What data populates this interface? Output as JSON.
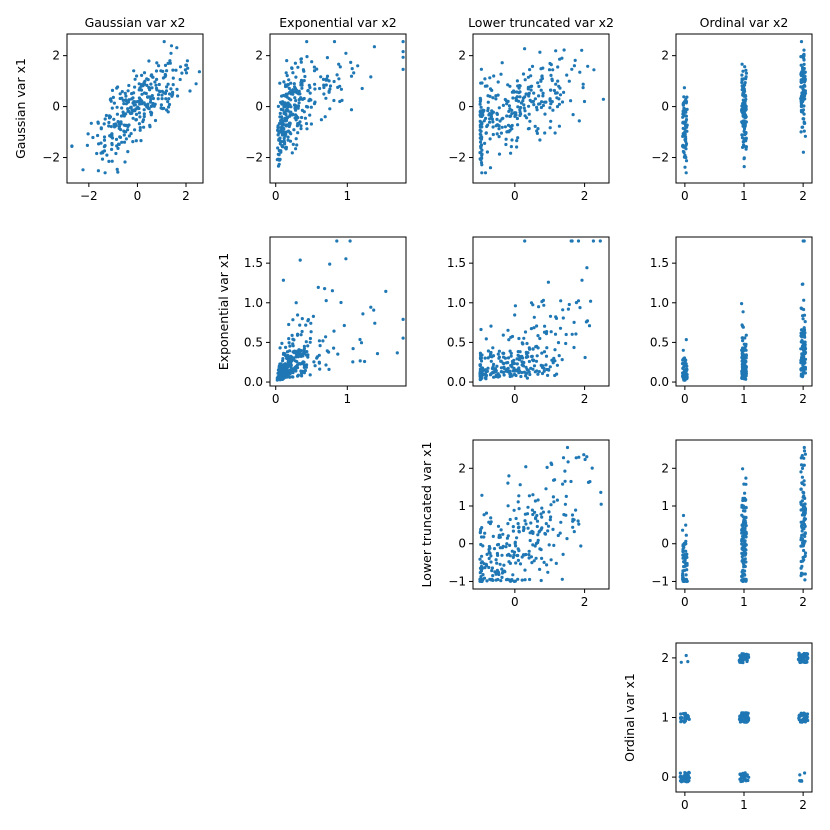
{
  "figure": {
    "point_color": "#1f77b4",
    "column_titles": [
      "Gaussian var x2",
      "Exponential var x2",
      "Lower truncated var x2",
      "Ordinal var x2"
    ],
    "row_labels": [
      "Gaussian var x1",
      "Exponential var x1",
      "Lower truncated var x1",
      "Ordinal var x1"
    ]
  },
  "chart_data": [
    {
      "type": "scatter",
      "name": "gaussian-vs-gaussian",
      "row": 0,
      "col": 0,
      "title": "Gaussian var x2",
      "ylabel": "Gaussian var x1",
      "xlim": [
        -2.9,
        2.7
      ],
      "ylim": [
        -3.0,
        2.85
      ],
      "xticks": [
        -2,
        0,
        2
      ],
      "xticklabels": [
        "−2",
        "0",
        "2"
      ],
      "yticks": [
        -2,
        0,
        2
      ],
      "yticklabels": [
        "−2",
        "0",
        "2"
      ],
      "n": 300,
      "kind": "gauss_gauss"
    },
    {
      "type": "scatter",
      "name": "gaussian-vs-exponential",
      "row": 0,
      "col": 1,
      "title": "Exponential var x2",
      "ylabel": "",
      "xlim": [
        -0.08,
        1.82
      ],
      "ylim": [
        -3.0,
        2.85
      ],
      "xticks": [
        0,
        1
      ],
      "xticklabels": [
        "0",
        "1"
      ],
      "yticks": [
        -2,
        0,
        2
      ],
      "yticklabels": [
        "−2",
        "0",
        "2"
      ],
      "n": 300,
      "kind": "gauss_exp"
    },
    {
      "type": "scatter",
      "name": "gaussian-vs-truncated",
      "row": 0,
      "col": 2,
      "title": "Lower truncated var x2",
      "ylabel": "",
      "xlim": [
        -1.2,
        2.7
      ],
      "ylim": [
        -3.0,
        2.85
      ],
      "xticks": [
        0,
        2
      ],
      "xticklabels": [
        "0",
        "2"
      ],
      "yticks": [
        -2,
        0,
        2
      ],
      "yticklabels": [
        "−2",
        "0",
        "2"
      ],
      "n": 300,
      "kind": "gauss_trunc"
    },
    {
      "type": "scatter",
      "name": "gaussian-vs-ordinal",
      "row": 0,
      "col": 3,
      "title": "Ordinal var x2",
      "ylabel": "",
      "xlim": [
        -0.15,
        2.15
      ],
      "ylim": [
        -3.0,
        2.85
      ],
      "xticks": [
        0,
        1,
        2
      ],
      "xticklabels": [
        "0",
        "1",
        "2"
      ],
      "yticks": [
        -2,
        0,
        2
      ],
      "yticklabels": [
        "−2",
        "0",
        "2"
      ],
      "n": 300,
      "kind": "gauss_ord"
    },
    {
      "type": "scatter",
      "name": "exponential-vs-exponential",
      "row": 1,
      "col": 1,
      "title": "",
      "ylabel": "Exponential var x1",
      "xlim": [
        -0.08,
        1.82
      ],
      "ylim": [
        -0.05,
        1.83
      ],
      "xticks": [
        0,
        1
      ],
      "xticklabels": [
        "0",
        "1"
      ],
      "yticks": [
        0.0,
        0.5,
        1.0,
        1.5
      ],
      "yticklabels": [
        "0.0",
        "0.5",
        "1.0",
        "1.5"
      ],
      "n": 300,
      "kind": "exp_exp"
    },
    {
      "type": "scatter",
      "name": "exponential-vs-truncated",
      "row": 1,
      "col": 2,
      "title": "",
      "ylabel": "",
      "xlim": [
        -1.2,
        2.7
      ],
      "ylim": [
        -0.05,
        1.83
      ],
      "xticks": [
        0,
        2
      ],
      "xticklabels": [
        "0",
        "2"
      ],
      "yticks": [
        0.0,
        0.5,
        1.0,
        1.5
      ],
      "yticklabels": [
        "0.0",
        "0.5",
        "1.0",
        "1.5"
      ],
      "n": 300,
      "kind": "exp_trunc"
    },
    {
      "type": "scatter",
      "name": "exponential-vs-ordinal",
      "row": 1,
      "col": 3,
      "title": "",
      "ylabel": "",
      "xlim": [
        -0.15,
        2.15
      ],
      "ylim": [
        -0.05,
        1.83
      ],
      "xticks": [
        0,
        1,
        2
      ],
      "xticklabels": [
        "0",
        "1",
        "2"
      ],
      "yticks": [
        0.0,
        0.5,
        1.0,
        1.5
      ],
      "yticklabels": [
        "0.0",
        "0.5",
        "1.0",
        "1.5"
      ],
      "n": 300,
      "kind": "exp_ord"
    },
    {
      "type": "scatter",
      "name": "truncated-vs-truncated",
      "row": 2,
      "col": 2,
      "title": "",
      "ylabel": "Lower truncated var x1",
      "xlim": [
        -1.2,
        2.7
      ],
      "ylim": [
        -1.2,
        2.75
      ],
      "xticks": [
        0,
        2
      ],
      "xticklabels": [
        "0",
        "2"
      ],
      "yticks": [
        -1,
        0,
        1,
        2
      ],
      "yticklabels": [
        "−1",
        "0",
        "1",
        "2"
      ],
      "n": 300,
      "kind": "trunc_trunc"
    },
    {
      "type": "scatter",
      "name": "truncated-vs-ordinal",
      "row": 2,
      "col": 3,
      "title": "",
      "ylabel": "",
      "xlim": [
        -0.15,
        2.15
      ],
      "ylim": [
        -1.2,
        2.75
      ],
      "xticks": [
        0,
        1,
        2
      ],
      "xticklabels": [
        "0",
        "1",
        "2"
      ],
      "yticks": [
        -1,
        0,
        1,
        2
      ],
      "yticklabels": [
        "−1",
        "0",
        "1",
        "2"
      ],
      "n": 300,
      "kind": "trunc_ord"
    },
    {
      "type": "scatter",
      "name": "ordinal-vs-ordinal",
      "row": 3,
      "col": 3,
      "title": "",
      "ylabel": "Ordinal var x1",
      "xlim": [
        -0.15,
        2.15
      ],
      "ylim": [
        -0.25,
        2.25
      ],
      "xticks": [
        0,
        1,
        2
      ],
      "xticklabels": [
        "0",
        "1",
        "2"
      ],
      "yticks": [
        0,
        1,
        2
      ],
      "yticklabels": [
        "0",
        "1",
        "2"
      ],
      "n": 300,
      "kind": "ord_ord"
    }
  ]
}
